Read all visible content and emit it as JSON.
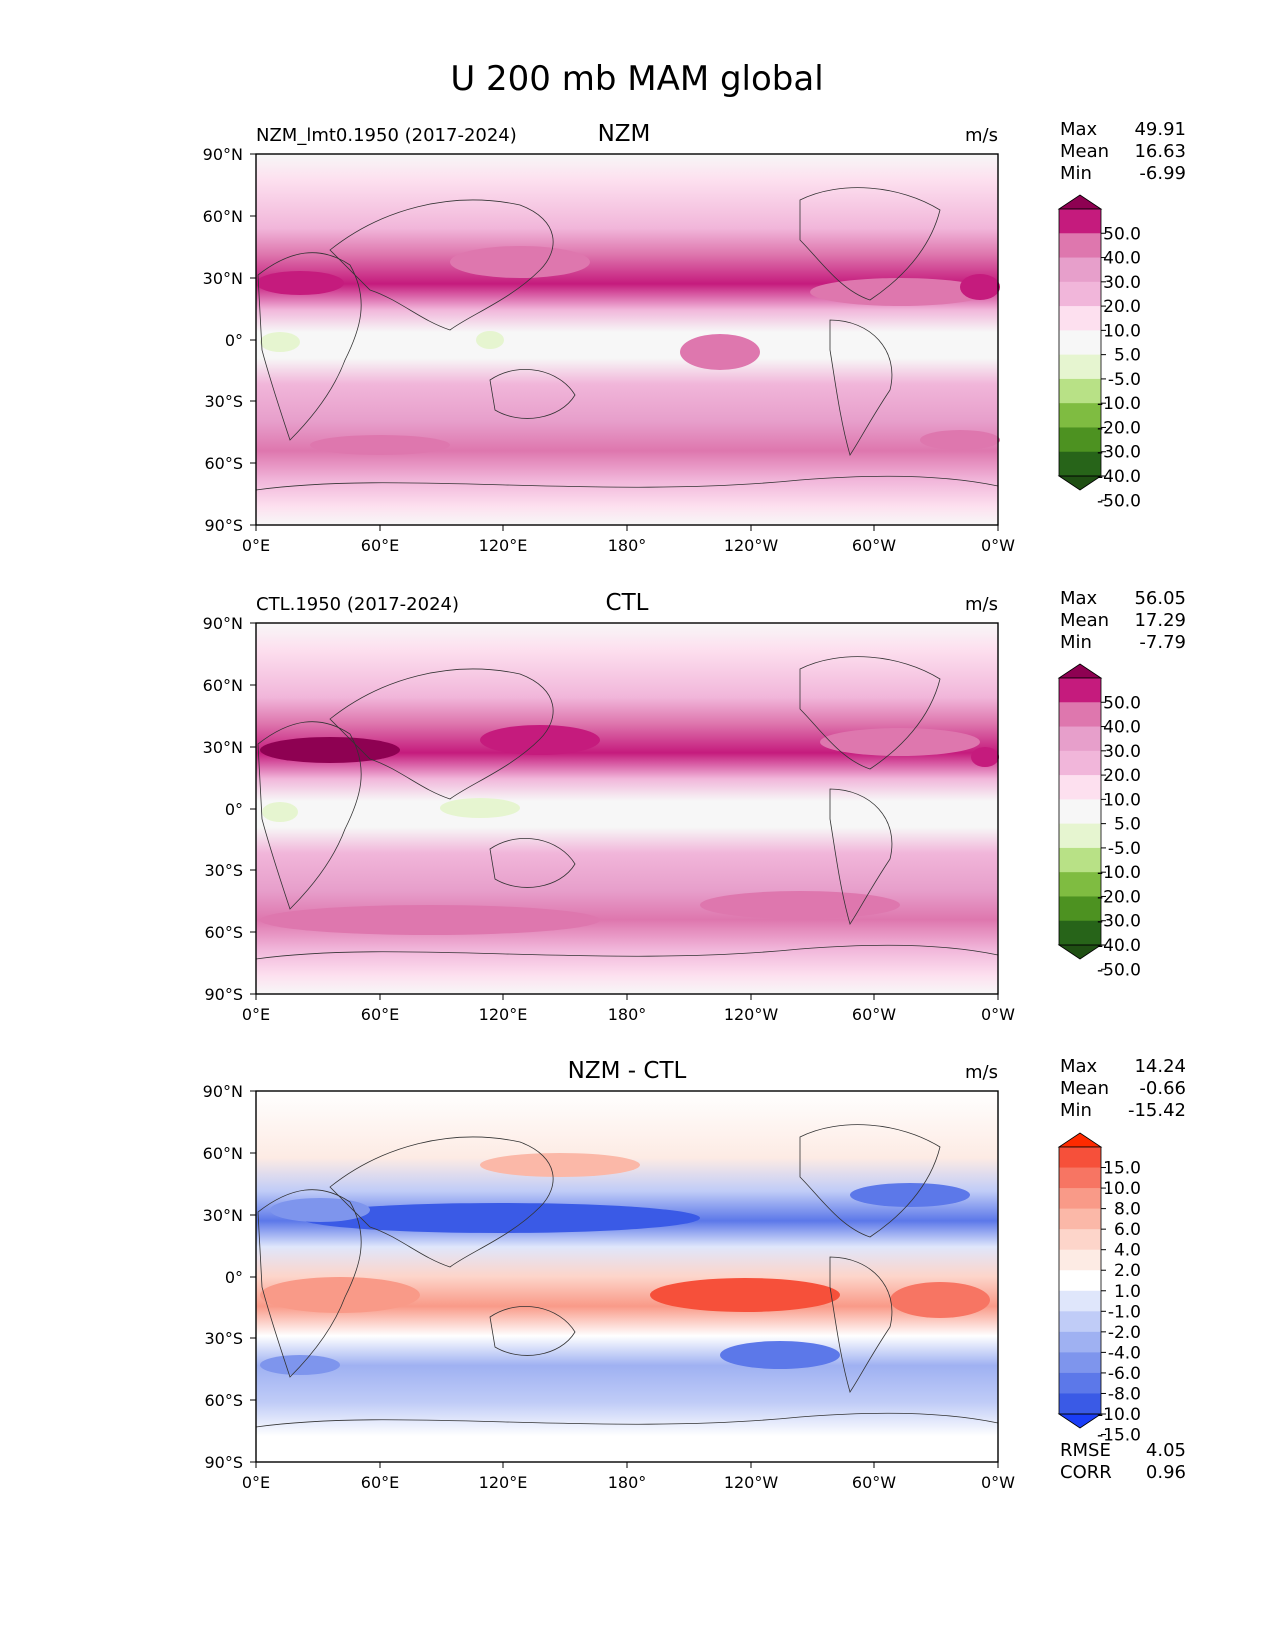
{
  "figure_title": "U 200 mb MAM global",
  "chart_data": [
    {
      "type": "map-contour",
      "panel_title": "NZM",
      "case_label": "NZM_lmt0.1950 (2017-2024)",
      "units": "m/s",
      "stats": {
        "Max": "49.91",
        "Mean": "16.63",
        "Min": "-6.99"
      },
      "x_ticks": [
        "0°E",
        "60°E",
        "120°E",
        "180°",
        "120°W",
        "60°W",
        "0°W"
      ],
      "y_ticks": [
        "90°N",
        "60°N",
        "30°N",
        "0°",
        "30°S",
        "60°S",
        "90°S"
      ],
      "colorbar": {
        "levels": [
          "50.0",
          "40.0",
          "30.0",
          "20.0",
          "10.0",
          "5.0",
          "-5.0",
          "-10.0",
          "-20.0",
          "-30.0",
          "-40.0",
          "-50.0"
        ],
        "colors": [
          "#8e0152",
          "#c51b7d",
          "#de77ae",
          "#e79fcb",
          "#f1b6da",
          "#fde0ef",
          "#f7f7f7",
          "#e6f5d0",
          "#b8e186",
          "#7fbc41",
          "#4d9221",
          "#276419",
          "#1f4f13"
        ]
      }
    },
    {
      "type": "map-contour",
      "panel_title": "CTL",
      "case_label": "CTL.1950 (2017-2024)",
      "units": "m/s",
      "stats": {
        "Max": "56.05",
        "Mean": "17.29",
        "Min": "-7.79"
      },
      "x_ticks": [
        "0°E",
        "60°E",
        "120°E",
        "180°",
        "120°W",
        "60°W",
        "0°W"
      ],
      "y_ticks": [
        "90°N",
        "60°N",
        "30°N",
        "0°",
        "30°S",
        "60°S",
        "90°S"
      ],
      "colorbar": {
        "levels": [
          "50.0",
          "40.0",
          "30.0",
          "20.0",
          "10.0",
          "5.0",
          "-5.0",
          "-10.0",
          "-20.0",
          "-30.0",
          "-40.0",
          "-50.0"
        ],
        "colors": [
          "#8e0152",
          "#c51b7d",
          "#de77ae",
          "#e79fcb",
          "#f1b6da",
          "#fde0ef",
          "#f7f7f7",
          "#e6f5d0",
          "#b8e186",
          "#7fbc41",
          "#4d9221",
          "#276419",
          "#1f4f13"
        ]
      }
    },
    {
      "type": "map-contour",
      "panel_title": "NZM - CTL",
      "case_label": "",
      "units": "m/s",
      "stats": {
        "Max": "14.24",
        "Mean": "-0.66",
        "Min": "-15.42"
      },
      "extra_stats": {
        "RMSE": "4.05",
        "CORR": "0.96"
      },
      "x_ticks": [
        "0°E",
        "60°E",
        "120°E",
        "180°",
        "120°W",
        "60°W",
        "0°W"
      ],
      "y_ticks": [
        "90°N",
        "60°N",
        "30°N",
        "0°",
        "30°S",
        "60°S",
        "90°S"
      ],
      "colorbar": {
        "levels": [
          "15.0",
          "10.0",
          "8.0",
          "6.0",
          "4.0",
          "2.0",
          "1.0",
          "-1.0",
          "-2.0",
          "-4.0",
          "-6.0",
          "-8.0",
          "-10.0",
          "-15.0"
        ],
        "colors": [
          "#ff2a00",
          "#f6503a",
          "#f77563",
          "#f99a88",
          "#fbb8a8",
          "#fdd5ca",
          "#fdebe4",
          "#ffffff",
          "#dfe6fb",
          "#c0ccf7",
          "#9fb1f2",
          "#7e95ed",
          "#5c78e9",
          "#3a5ae6",
          "#1a3df7"
        ]
      }
    }
  ]
}
